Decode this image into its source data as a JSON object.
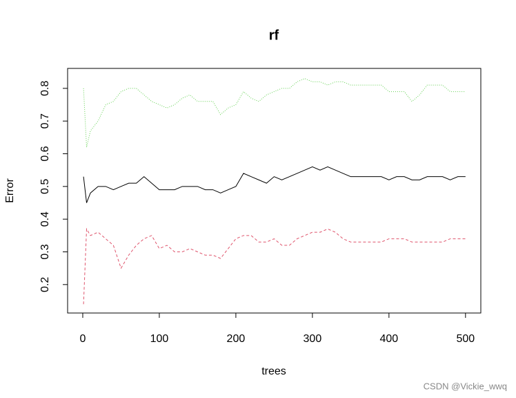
{
  "chart_data": {
    "type": "line",
    "title": "rf",
    "xlabel": "trees",
    "ylabel": "Error",
    "x": [
      1,
      5,
      10,
      20,
      30,
      40,
      50,
      60,
      70,
      80,
      90,
      100,
      110,
      120,
      130,
      140,
      150,
      160,
      170,
      180,
      190,
      200,
      210,
      220,
      230,
      240,
      250,
      260,
      270,
      280,
      290,
      300,
      310,
      320,
      330,
      340,
      350,
      360,
      370,
      380,
      390,
      400,
      410,
      420,
      430,
      440,
      450,
      460,
      470,
      480,
      490,
      500
    ],
    "series": [
      {
        "color": "#000000",
        "dash": "none",
        "values": [
          0.53,
          0.45,
          0.48,
          0.5,
          0.5,
          0.49,
          0.5,
          0.51,
          0.51,
          0.53,
          0.51,
          0.49,
          0.49,
          0.49,
          0.5,
          0.5,
          0.5,
          0.49,
          0.49,
          0.48,
          0.49,
          0.5,
          0.54,
          0.53,
          0.52,
          0.51,
          0.53,
          0.52,
          0.53,
          0.54,
          0.55,
          0.56,
          0.55,
          0.56,
          0.55,
          0.54,
          0.53,
          0.53,
          0.53,
          0.53,
          0.53,
          0.52,
          0.53,
          0.53,
          0.52,
          0.52,
          0.53,
          0.53,
          0.53,
          0.52,
          0.53,
          0.53
        ]
      },
      {
        "color": "#DF536B",
        "dash": "4 3",
        "values": [
          0.14,
          0.37,
          0.35,
          0.36,
          0.34,
          0.32,
          0.25,
          0.29,
          0.32,
          0.34,
          0.35,
          0.31,
          0.32,
          0.3,
          0.3,
          0.31,
          0.3,
          0.29,
          0.29,
          0.28,
          0.31,
          0.34,
          0.35,
          0.35,
          0.33,
          0.33,
          0.34,
          0.32,
          0.32,
          0.34,
          0.35,
          0.36,
          0.36,
          0.37,
          0.36,
          0.34,
          0.33,
          0.33,
          0.33,
          0.33,
          0.33,
          0.34,
          0.34,
          0.34,
          0.33,
          0.33,
          0.33,
          0.33,
          0.33,
          0.34,
          0.34,
          0.34
        ]
      },
      {
        "color": "#61D04F",
        "dash": "1 2",
        "values": [
          0.8,
          0.62,
          0.67,
          0.7,
          0.75,
          0.76,
          0.79,
          0.8,
          0.8,
          0.78,
          0.76,
          0.75,
          0.74,
          0.75,
          0.77,
          0.78,
          0.76,
          0.76,
          0.76,
          0.72,
          0.74,
          0.75,
          0.79,
          0.77,
          0.76,
          0.78,
          0.79,
          0.8,
          0.8,
          0.82,
          0.83,
          0.82,
          0.82,
          0.81,
          0.82,
          0.82,
          0.81,
          0.81,
          0.81,
          0.81,
          0.81,
          0.79,
          0.79,
          0.79,
          0.76,
          0.78,
          0.81,
          0.81,
          0.81,
          0.79,
          0.79,
          0.79
        ]
      }
    ],
    "xlim": [
      -19.8,
      520
    ],
    "ylim": [
      0.113,
      0.861
    ],
    "xticks": [
      0,
      100,
      200,
      300,
      400,
      500
    ],
    "yticks": [
      0.2,
      0.3,
      0.4,
      0.5,
      0.6,
      0.7,
      0.8
    ]
  },
  "watermark": "CSDN @Vickie_wwq"
}
